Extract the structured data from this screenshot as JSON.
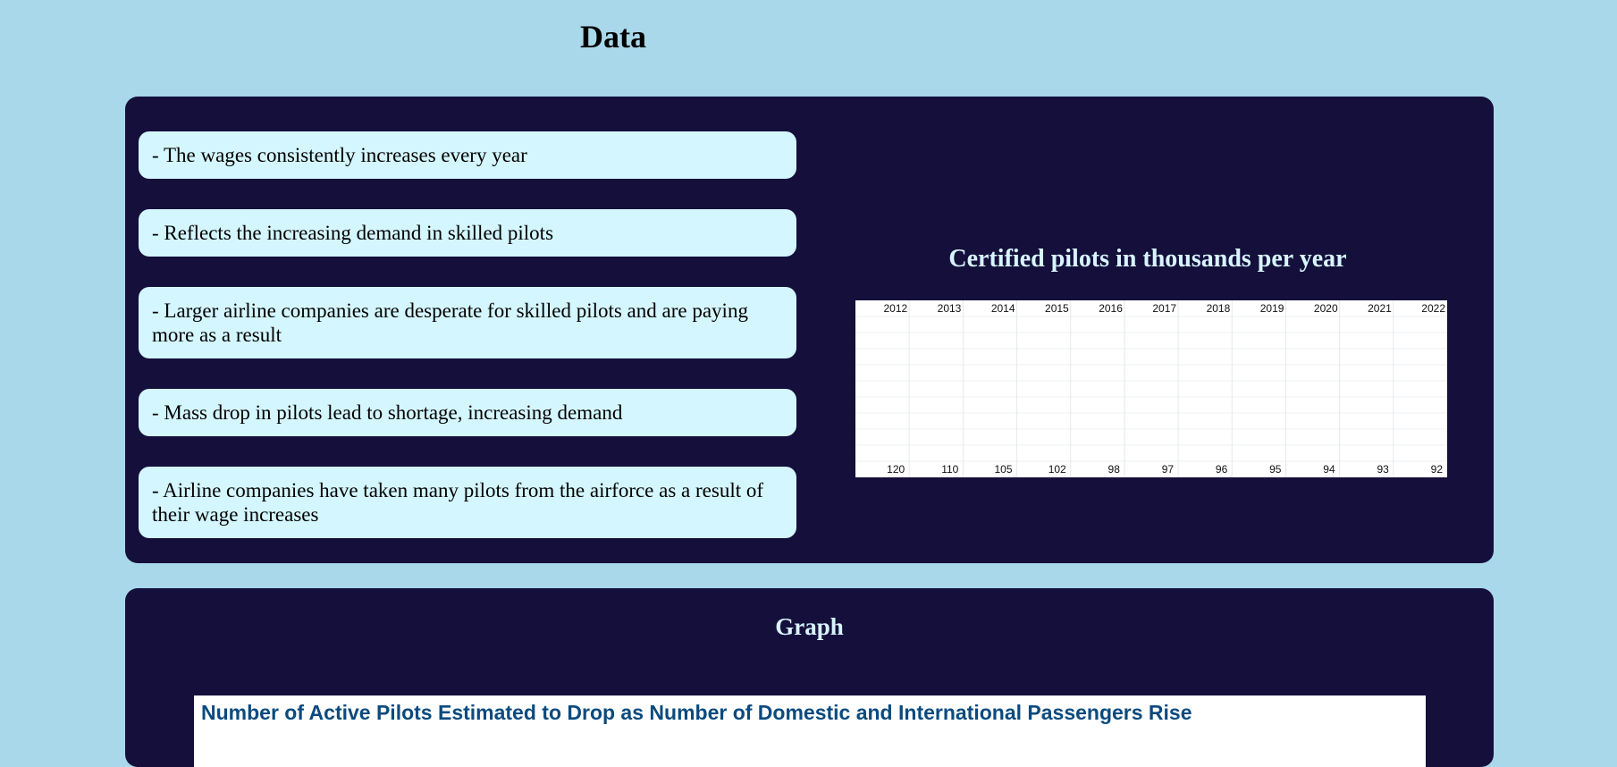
{
  "page": {
    "title": "Data"
  },
  "data_section": {
    "points": [
      "- The wages consistently increases every year",
      "- Reflects the increasing demand in skilled pilots",
      "- Larger airline companies are desperate for skilled pilots and are paying more as a result",
      "- Mass drop in pilots lead to shortage, increasing demand",
      "- Airline companies have taken many pilots from the airforce as a result of their wage increases"
    ],
    "chart_heading": "Certified pilots in thousands per year"
  },
  "chart_data": {
    "type": "table",
    "categories": [
      "2012",
      "2013",
      "2014",
      "2015",
      "2016",
      "2017",
      "2018",
      "2019",
      "2020",
      "2021",
      "2022"
    ],
    "values": [
      120,
      110,
      105,
      102,
      98,
      97,
      96,
      95,
      94,
      93,
      92
    ]
  },
  "graph_section": {
    "title": "Graph",
    "image_title": "Number of Active Pilots Estimated to Drop as Number of Domestic and International Passengers Rise"
  },
  "colors": {
    "background": "#a8d8ea",
    "panel": "#140f3b",
    "card": "#d4f6fe",
    "heading_light": "#d8f4ff",
    "graph_title": "#0b4a7e"
  }
}
